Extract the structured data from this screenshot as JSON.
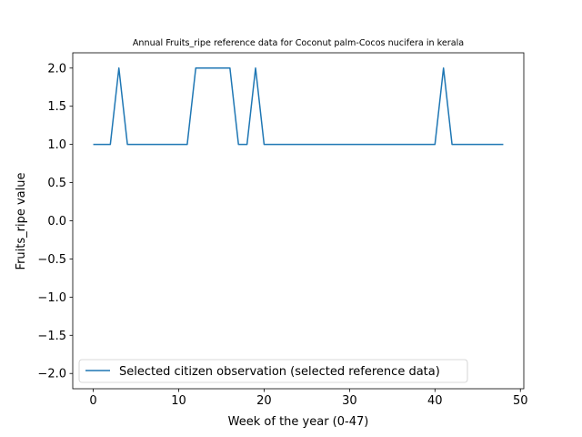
{
  "chart_data": {
    "type": "line",
    "title": "Annual Fruits_ripe reference data for Coconut palm-Cocos nucifera in kerala",
    "xlabel": "Week of the year (0-47)",
    "ylabel": "Fruits_ripe value",
    "xlim": [
      -2.4,
      50.4
    ],
    "ylim": [
      -2.2,
      2.2
    ],
    "x_ticks": [
      0,
      10,
      20,
      30,
      40,
      50
    ],
    "y_ticks": [
      2.0,
      1.5,
      1.0,
      0.5,
      0.0,
      -0.5,
      -1.0,
      -1.5,
      -2.0
    ],
    "x_tick_labels": [
      "0",
      "10",
      "20",
      "30",
      "40",
      "50"
    ],
    "y_tick_labels": [
      "2.0",
      "1.5",
      "1.0",
      "0.5",
      "0.0",
      "−0.5",
      "−1.0",
      "−1.5",
      "−2.0"
    ],
    "grid": false,
    "legend_position": "lower-left",
    "series": [
      {
        "name": "Selected citizen observation (selected reference data)",
        "color": "#1f77b4",
        "x": [
          0,
          1,
          2,
          3,
          4,
          5,
          6,
          7,
          8,
          9,
          10,
          11,
          12,
          13,
          14,
          15,
          16,
          17,
          18,
          19,
          20,
          21,
          22,
          23,
          24,
          25,
          26,
          27,
          28,
          29,
          30,
          31,
          32,
          33,
          34,
          35,
          36,
          37,
          38,
          39,
          40,
          41,
          42,
          43,
          44,
          45,
          46,
          47,
          48
        ],
        "values": [
          1,
          1,
          1,
          2,
          1,
          1,
          1,
          1,
          1,
          1,
          1,
          1,
          2,
          2,
          2,
          2,
          2,
          1,
          1,
          2,
          1,
          1,
          1,
          1,
          1,
          1,
          1,
          1,
          1,
          1,
          1,
          1,
          1,
          1,
          1,
          1,
          1,
          1,
          1,
          1,
          1,
          2,
          1,
          1,
          1,
          1,
          1,
          1,
          1
        ]
      }
    ]
  }
}
